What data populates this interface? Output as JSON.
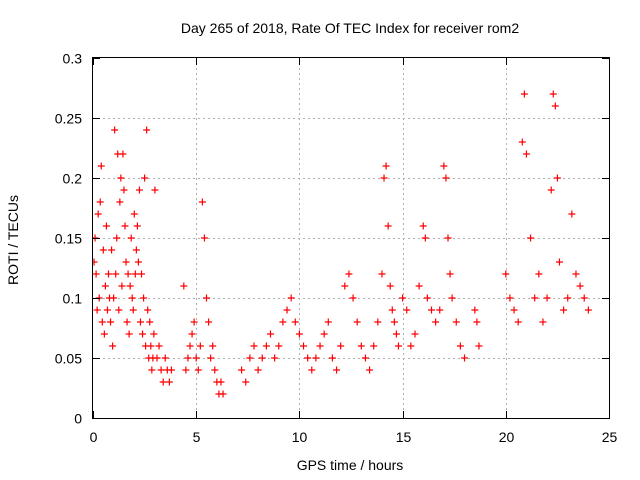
{
  "chart_data": {
    "type": "scatter",
    "title": "Day 265 of 2018, Rate Of TEC Index for receiver rom2",
    "xlabel": "GPS time / hours",
    "ylabel": "ROTI / TECUs",
    "xlim": [
      0,
      25
    ],
    "ylim": [
      0,
      0.3
    ],
    "xticks": [
      0,
      5,
      10,
      15,
      20,
      25
    ],
    "xtick_labels": [
      "0",
      "5",
      "10",
      "15",
      "20",
      "25"
    ],
    "yticks": [
      0,
      0.05,
      0.1,
      0.15,
      0.2,
      0.25,
      0.3
    ],
    "ytick_labels": [
      "0",
      "0.05",
      "0.1",
      "0.15",
      "0.2",
      "0.25",
      "0.3"
    ],
    "grid": true,
    "marker": "+",
    "color": "#ff0000",
    "series": [
      {
        "name": "ROTI",
        "x": [
          0.05,
          0.1,
          0.15,
          0.2,
          0.25,
          0.3,
          0.35,
          0.4,
          0.45,
          0.5,
          0.55,
          0.6,
          0.65,
          0.7,
          0.75,
          0.8,
          0.85,
          0.9,
          0.95,
          1.0,
          1.05,
          1.1,
          1.15,
          1.2,
          1.25,
          1.3,
          1.35,
          1.4,
          1.45,
          1.5,
          1.55,
          1.6,
          1.65,
          1.7,
          1.75,
          1.8,
          1.85,
          1.9,
          1.95,
          2.0,
          2.05,
          2.1,
          2.15,
          2.2,
          2.25,
          2.3,
          2.35,
          2.4,
          2.45,
          2.5,
          2.55,
          2.6,
          2.65,
          2.7,
          2.75,
          2.8,
          2.85,
          2.9,
          2.95,
          3.0,
          3.1,
          3.2,
          3.3,
          3.4,
          3.5,
          3.6,
          3.7,
          3.8,
          4.4,
          4.5,
          4.6,
          4.7,
          4.8,
          4.9,
          5.0,
          5.1,
          5.2,
          5.3,
          5.4,
          5.5,
          5.6,
          5.7,
          5.8,
          5.9,
          6.0,
          6.1,
          6.2,
          6.3,
          7.2,
          7.4,
          7.6,
          7.8,
          8.0,
          8.2,
          8.4,
          8.6,
          8.8,
          9.0,
          9.2,
          9.4,
          9.6,
          9.8,
          10.0,
          10.2,
          10.4,
          10.6,
          10.8,
          11.0,
          11.2,
          11.4,
          11.6,
          11.8,
          12.0,
          12.2,
          12.4,
          12.6,
          12.8,
          13.0,
          13.2,
          13.4,
          13.6,
          13.8,
          14.0,
          14.1,
          14.2,
          14.3,
          14.4,
          14.5,
          14.6,
          14.7,
          14.8,
          15.0,
          15.2,
          15.4,
          15.6,
          15.8,
          16.0,
          16.1,
          16.2,
          16.4,
          16.6,
          16.8,
          17.0,
          17.1,
          17.2,
          17.3,
          17.4,
          17.6,
          17.8,
          18.0,
          18.5,
          18.6,
          18.7,
          20.0,
          20.2,
          20.4,
          20.6,
          20.8,
          20.9,
          21.0,
          21.2,
          21.4,
          21.6,
          21.8,
          22.0,
          22.2,
          22.3,
          22.4,
          22.5,
          22.6,
          22.8,
          23.0,
          23.2,
          23.4,
          23.6,
          23.8,
          24.0
        ],
        "y": [
          0.13,
          0.15,
          0.12,
          0.09,
          0.17,
          0.1,
          0.18,
          0.21,
          0.08,
          0.14,
          0.07,
          0.11,
          0.16,
          0.09,
          0.12,
          0.1,
          0.08,
          0.14,
          0.06,
          0.1,
          0.24,
          0.12,
          0.15,
          0.22,
          0.09,
          0.18,
          0.2,
          0.11,
          0.22,
          0.19,
          0.16,
          0.13,
          0.08,
          0.12,
          0.07,
          0.11,
          0.15,
          0.1,
          0.09,
          0.17,
          0.12,
          0.14,
          0.16,
          0.13,
          0.19,
          0.08,
          0.12,
          0.07,
          0.1,
          0.2,
          0.06,
          0.24,
          0.09,
          0.05,
          0.08,
          0.06,
          0.04,
          0.05,
          0.07,
          0.19,
          0.05,
          0.06,
          0.04,
          0.03,
          0.05,
          0.04,
          0.03,
          0.04,
          0.11,
          0.04,
          0.05,
          0.06,
          0.07,
          0.08,
          0.05,
          0.04,
          0.06,
          0.18,
          0.15,
          0.1,
          0.08,
          0.05,
          0.06,
          0.04,
          0.03,
          0.02,
          0.03,
          0.02,
          0.04,
          0.03,
          0.05,
          0.06,
          0.04,
          0.05,
          0.06,
          0.07,
          0.05,
          0.06,
          0.08,
          0.09,
          0.1,
          0.08,
          0.07,
          0.06,
          0.05,
          0.04,
          0.05,
          0.06,
          0.07,
          0.08,
          0.05,
          0.04,
          0.06,
          0.11,
          0.12,
          0.1,
          0.08,
          0.06,
          0.05,
          0.04,
          0.06,
          0.08,
          0.12,
          0.2,
          0.21,
          0.16,
          0.11,
          0.09,
          0.08,
          0.07,
          0.06,
          0.1,
          0.09,
          0.06,
          0.07,
          0.11,
          0.16,
          0.15,
          0.1,
          0.09,
          0.08,
          0.09,
          0.21,
          0.2,
          0.15,
          0.12,
          0.1,
          0.08,
          0.06,
          0.05,
          0.09,
          0.08,
          0.06,
          0.12,
          0.1,
          0.09,
          0.08,
          0.23,
          0.27,
          0.22,
          0.15,
          0.1,
          0.12,
          0.08,
          0.1,
          0.19,
          0.27,
          0.26,
          0.2,
          0.13,
          0.09,
          0.1,
          0.17,
          0.12,
          0.11,
          0.1,
          0.09
        ]
      }
    ]
  }
}
